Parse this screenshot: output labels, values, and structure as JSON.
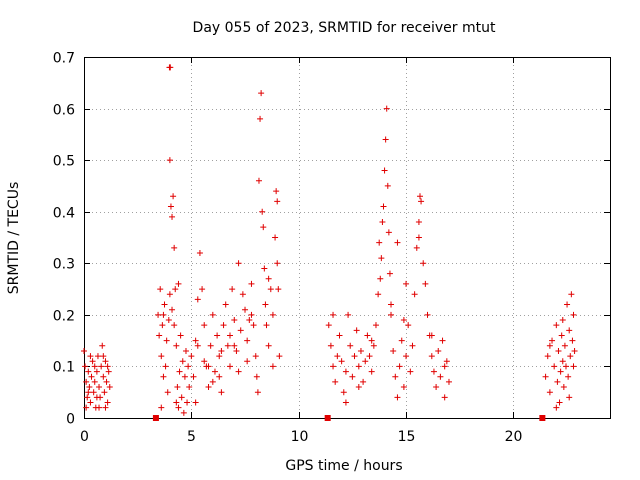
{
  "chart_data": {
    "type": "scatter",
    "title": "Day 055 of 2023, SRMTID for receiver mtut",
    "xlabel": "GPS time / hours",
    "ylabel": "SRMTID / TECUs",
    "xlim": [
      0,
      24.5
    ],
    "ylim": [
      0,
      0.7
    ],
    "x_ticks": [
      0,
      5,
      10,
      15,
      20
    ],
    "x_tick_labels": [
      "0",
      "5",
      "10",
      "15",
      "20"
    ],
    "y_ticks": [
      0,
      0.1,
      0.2,
      0.3,
      0.4,
      0.5,
      0.6,
      0.7
    ],
    "y_tick_labels": [
      "0",
      "0.1",
      "0.2",
      "0.3",
      "0.4",
      "0.5",
      "0.6",
      "0.7"
    ],
    "grid": true,
    "marker_color": "#e00000",
    "series": [
      {
        "name": "SRMTID",
        "marker": "plus",
        "points": [
          [
            0.0,
            0.13
          ],
          [
            0.05,
            0.1
          ],
          [
            0.1,
            0.07
          ],
          [
            0.15,
            0.04
          ],
          [
            0.2,
            0.09
          ],
          [
            0.25,
            0.06
          ],
          [
            0.3,
            0.03
          ],
          [
            0.35,
            0.08
          ],
          [
            0.4,
            0.11
          ],
          [
            0.45,
            0.05
          ],
          [
            0.5,
            0.07
          ],
          [
            0.55,
            0.02
          ],
          [
            0.6,
            0.09
          ],
          [
            0.65,
            0.12
          ],
          [
            0.7,
            0.06
          ],
          [
            0.75,
            0.04
          ],
          [
            0.8,
            0.1
          ],
          [
            0.85,
            0.14
          ],
          [
            0.9,
            0.08
          ],
          [
            0.95,
            0.05
          ],
          [
            1.0,
            0.11
          ],
          [
            1.05,
            0.07
          ],
          [
            1.1,
            0.03
          ],
          [
            1.15,
            0.09
          ],
          [
            1.2,
            0.06
          ],
          [
            0.1,
            0.02
          ],
          [
            0.3,
            0.12
          ],
          [
            0.5,
            0.1
          ],
          [
            0.7,
            0.02
          ],
          [
            0.9,
            0.12
          ],
          [
            1.1,
            0.1
          ],
          [
            0.2,
            0.05
          ],
          [
            0.6,
            0.04
          ],
          [
            1.0,
            0.02
          ],
          [
            3.45,
            0.2
          ],
          [
            3.5,
            0.16
          ],
          [
            3.55,
            0.25
          ],
          [
            3.6,
            0.12
          ],
          [
            3.65,
            0.18
          ],
          [
            3.7,
            0.08
          ],
          [
            3.75,
            0.22
          ],
          [
            3.8,
            0.1
          ],
          [
            3.85,
            0.15
          ],
          [
            3.9,
            0.05
          ],
          [
            3.95,
            0.19
          ],
          [
            4.0,
            0.24
          ],
          [
            4.05,
            0.41
          ],
          [
            4.1,
            0.39
          ],
          [
            4.15,
            0.43
          ],
          [
            4.2,
            0.33
          ],
          [
            4.25,
            0.25
          ],
          [
            4.3,
            0.14
          ],
          [
            4.35,
            0.06
          ],
          [
            4.4,
            0.02
          ],
          [
            4.45,
            0.09
          ],
          [
            4.5,
            0.16
          ],
          [
            4.55,
            0.04
          ],
          [
            4.6,
            0.11
          ],
          [
            4.65,
            0.01
          ],
          [
            4.7,
            0.08
          ],
          [
            4.75,
            0.13
          ],
          [
            4.8,
            0.03
          ],
          [
            4.85,
            0.1
          ],
          [
            4.9,
            0.06
          ],
          [
            3.98,
            0.68
          ],
          [
            4.02,
            0.68
          ],
          [
            4.0,
            0.5
          ],
          [
            3.7,
            0.2
          ],
          [
            4.1,
            0.21
          ],
          [
            4.2,
            0.18
          ],
          [
            4.4,
            0.26
          ],
          [
            3.6,
            0.02
          ],
          [
            4.3,
            0.03
          ],
          [
            5.0,
            0.12
          ],
          [
            5.1,
            0.08
          ],
          [
            5.2,
            0.15
          ],
          [
            5.3,
            0.23
          ],
          [
            5.4,
            0.32
          ],
          [
            5.5,
            0.25
          ],
          [
            5.6,
            0.18
          ],
          [
            5.7,
            0.1
          ],
          [
            5.8,
            0.06
          ],
          [
            5.9,
            0.14
          ],
          [
            6.0,
            0.2
          ],
          [
            6.1,
            0.09
          ],
          [
            6.2,
            0.16
          ],
          [
            6.3,
            0.12
          ],
          [
            6.4,
            0.05
          ],
          [
            6.5,
            0.18
          ],
          [
            6.6,
            0.22
          ],
          [
            6.7,
            0.14
          ],
          [
            6.8,
            0.1
          ],
          [
            6.9,
            0.25
          ],
          [
            7.0,
            0.19
          ],
          [
            7.1,
            0.13
          ],
          [
            7.2,
            0.3
          ],
          [
            7.3,
            0.17
          ],
          [
            7.4,
            0.24
          ],
          [
            7.5,
            0.21
          ],
          [
            7.6,
            0.15
          ],
          [
            7.7,
            0.19
          ],
          [
            7.8,
            0.26
          ],
          [
            7.9,
            0.18
          ],
          [
            8.0,
            0.12
          ],
          [
            8.05,
            0.08
          ],
          [
            8.1,
            0.05
          ],
          [
            8.15,
            0.46
          ],
          [
            8.2,
            0.58
          ],
          [
            8.25,
            0.63
          ],
          [
            8.3,
            0.4
          ],
          [
            8.35,
            0.37
          ],
          [
            8.4,
            0.29
          ],
          [
            8.45,
            0.22
          ],
          [
            8.5,
            0.18
          ],
          [
            8.6,
            0.14
          ],
          [
            8.7,
            0.25
          ],
          [
            8.8,
            0.2
          ],
          [
            8.9,
            0.35
          ],
          [
            8.95,
            0.44
          ],
          [
            9.0,
            0.3
          ],
          [
            9.05,
            0.25
          ],
          [
            9.1,
            0.12
          ],
          [
            5.2,
            0.03
          ],
          [
            5.6,
            0.11
          ],
          [
            6.0,
            0.07
          ],
          [
            6.4,
            0.13
          ],
          [
            6.8,
            0.16
          ],
          [
            7.2,
            0.09
          ],
          [
            7.6,
            0.11
          ],
          [
            5.3,
            0.14
          ],
          [
            5.8,
            0.1
          ],
          [
            6.3,
            0.08
          ],
          [
            7.0,
            0.14
          ],
          [
            7.8,
            0.2
          ],
          [
            8.6,
            0.27
          ],
          [
            8.8,
            0.1
          ],
          [
            9.0,
            0.42
          ],
          [
            11.4,
            0.18
          ],
          [
            11.5,
            0.14
          ],
          [
            11.6,
            0.1
          ],
          [
            11.7,
            0.07
          ],
          [
            11.8,
            0.12
          ],
          [
            11.9,
            0.16
          ],
          [
            12.0,
            0.11
          ],
          [
            12.1,
            0.05
          ],
          [
            12.2,
            0.09
          ],
          [
            12.3,
            0.2
          ],
          [
            12.4,
            0.14
          ],
          [
            12.5,
            0.08
          ],
          [
            12.6,
            0.12
          ],
          [
            12.7,
            0.17
          ],
          [
            12.8,
            0.1
          ],
          [
            12.9,
            0.13
          ],
          [
            13.0,
            0.07
          ],
          [
            13.1,
            0.11
          ],
          [
            13.2,
            0.16
          ],
          [
            13.3,
            0.12
          ],
          [
            13.4,
            0.09
          ],
          [
            13.5,
            0.14
          ],
          [
            13.6,
            0.18
          ],
          [
            13.7,
            0.24
          ],
          [
            13.75,
            0.34
          ],
          [
            13.8,
            0.27
          ],
          [
            13.85,
            0.31
          ],
          [
            13.9,
            0.38
          ],
          [
            13.95,
            0.41
          ],
          [
            14.0,
            0.48
          ],
          [
            14.05,
            0.54
          ],
          [
            14.1,
            0.6
          ],
          [
            14.15,
            0.45
          ],
          [
            14.2,
            0.36
          ],
          [
            14.25,
            0.28
          ],
          [
            14.3,
            0.2
          ],
          [
            14.4,
            0.13
          ],
          [
            14.5,
            0.08
          ],
          [
            14.6,
            0.04
          ],
          [
            14.7,
            0.1
          ],
          [
            14.8,
            0.15
          ],
          [
            14.9,
            0.06
          ],
          [
            15.0,
            0.12
          ],
          [
            15.1,
            0.18
          ],
          [
            15.2,
            0.09
          ],
          [
            15.3,
            0.14
          ],
          [
            15.4,
            0.24
          ],
          [
            15.5,
            0.33
          ],
          [
            15.6,
            0.38
          ],
          [
            15.65,
            0.43
          ],
          [
            15.7,
            0.42
          ],
          [
            15.8,
            0.3
          ],
          [
            15.9,
            0.26
          ],
          [
            16.0,
            0.2
          ],
          [
            16.1,
            0.16
          ],
          [
            16.2,
            0.12
          ],
          [
            16.3,
            0.09
          ],
          [
            16.4,
            0.06
          ],
          [
            16.5,
            0.13
          ],
          [
            16.6,
            0.08
          ],
          [
            16.7,
            0.15
          ],
          [
            16.8,
            0.04
          ],
          [
            16.9,
            0.11
          ],
          [
            17.0,
            0.07
          ],
          [
            11.6,
            0.2
          ],
          [
            12.2,
            0.03
          ],
          [
            12.8,
            0.06
          ],
          [
            13.4,
            0.15
          ],
          [
            14.3,
            0.22
          ],
          [
            14.9,
            0.19
          ],
          [
            15.6,
            0.35
          ],
          [
            16.2,
            0.16
          ],
          [
            16.8,
            0.1
          ],
          [
            14.6,
            0.34
          ],
          [
            15.0,
            0.26
          ],
          [
            21.5,
            0.08
          ],
          [
            21.6,
            0.12
          ],
          [
            21.7,
            0.05
          ],
          [
            21.8,
            0.15
          ],
          [
            21.9,
            0.1
          ],
          [
            22.0,
            0.18
          ],
          [
            22.05,
            0.07
          ],
          [
            22.1,
            0.13
          ],
          [
            22.15,
            0.03
          ],
          [
            22.2,
            0.09
          ],
          [
            22.25,
            0.16
          ],
          [
            22.3,
            0.11
          ],
          [
            22.35,
            0.06
          ],
          [
            22.4,
            0.14
          ],
          [
            22.45,
            0.1
          ],
          [
            22.5,
            0.22
          ],
          [
            22.55,
            0.08
          ],
          [
            22.6,
            0.04
          ],
          [
            22.65,
            0.12
          ],
          [
            22.7,
            0.24
          ],
          [
            22.75,
            0.15
          ],
          [
            22.8,
            0.1
          ],
          [
            22.85,
            0.13
          ],
          [
            21.7,
            0.14
          ],
          [
            22.0,
            0.02
          ],
          [
            22.3,
            0.19
          ],
          [
            22.6,
            0.17
          ],
          [
            22.8,
            0.2
          ]
        ]
      },
      {
        "name": "Gaps",
        "marker": "square",
        "points": [
          [
            3.35,
            0.0
          ],
          [
            11.35,
            0.0
          ],
          [
            21.35,
            0.0
          ]
        ]
      }
    ]
  }
}
